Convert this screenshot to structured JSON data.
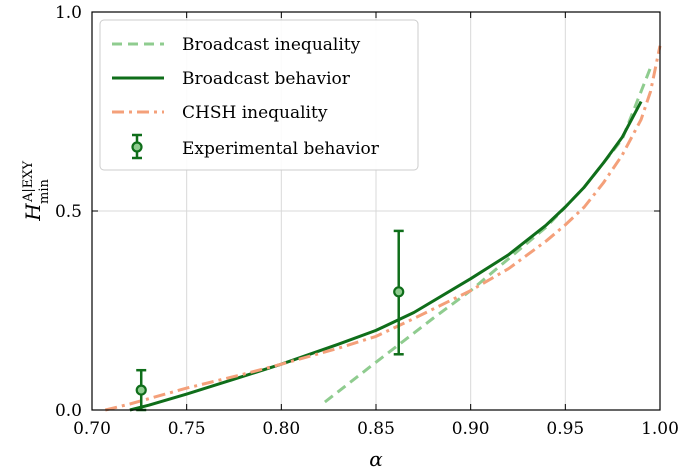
{
  "chart_data": {
    "type": "line",
    "xlabel": "α",
    "ylabel": {
      "main": "H",
      "superscript": "A|EXY",
      "subscript": "min"
    },
    "xlim": [
      0.7,
      1.0
    ],
    "ylim": [
      0.0,
      1.0
    ],
    "x_ticks": [
      0.7,
      0.75,
      0.8,
      0.85,
      0.9,
      0.95,
      1.0
    ],
    "x_tick_labels": [
      "0.70",
      "0.75",
      "0.80",
      "0.85",
      "0.90",
      "0.95",
      "1.00"
    ],
    "y_ticks": [
      0.0,
      0.5,
      1.0
    ],
    "y_tick_labels": [
      "0.0",
      "0.5",
      "1.0"
    ],
    "grid": true,
    "legend_position": "top-left",
    "series": [
      {
        "name": "Broadcast inequality",
        "style": "dashed",
        "color": "#8fcc8f",
        "x": [
          0.823,
          0.85,
          0.88,
          0.9,
          0.92,
          0.94,
          0.96,
          0.98,
          0.995
        ],
        "y": [
          0.02,
          0.12,
          0.23,
          0.3,
          0.38,
          0.46,
          0.56,
          0.68,
          0.86
        ]
      },
      {
        "name": "Broadcast behavior",
        "style": "solid",
        "color": "#0f6e1a",
        "x": [
          0.72,
          0.73,
          0.75,
          0.78,
          0.8,
          0.83,
          0.85,
          0.87,
          0.9,
          0.92,
          0.94,
          0.95,
          0.96,
          0.97,
          0.98,
          0.99
        ],
        "y": [
          0.0,
          0.012,
          0.04,
          0.085,
          0.115,
          0.165,
          0.2,
          0.245,
          0.33,
          0.39,
          0.465,
          0.51,
          0.56,
          0.62,
          0.685,
          0.775
        ]
      },
      {
        "name": "CHSH inequality",
        "style": "dashdot",
        "color": "#f4a07a",
        "x": [
          0.707,
          0.72,
          0.75,
          0.78,
          0.8,
          0.83,
          0.85,
          0.87,
          0.9,
          0.92,
          0.94,
          0.95,
          0.96,
          0.97,
          0.98,
          0.99,
          0.995,
          1.0
        ],
        "y": [
          0.0,
          0.015,
          0.055,
          0.09,
          0.115,
          0.155,
          0.185,
          0.23,
          0.3,
          0.355,
          0.425,
          0.465,
          0.51,
          0.57,
          0.64,
          0.73,
          0.8,
          0.915
        ]
      }
    ],
    "experimental": {
      "name": "Experimental behavior",
      "color": "#0f6e1a",
      "points": [
        {
          "x": 0.726,
          "y": 0.05,
          "err_low": 0.0,
          "err_high": 0.1
        },
        {
          "x": 0.862,
          "y": 0.297,
          "err_low": 0.14,
          "err_high": 0.45
        }
      ]
    }
  }
}
